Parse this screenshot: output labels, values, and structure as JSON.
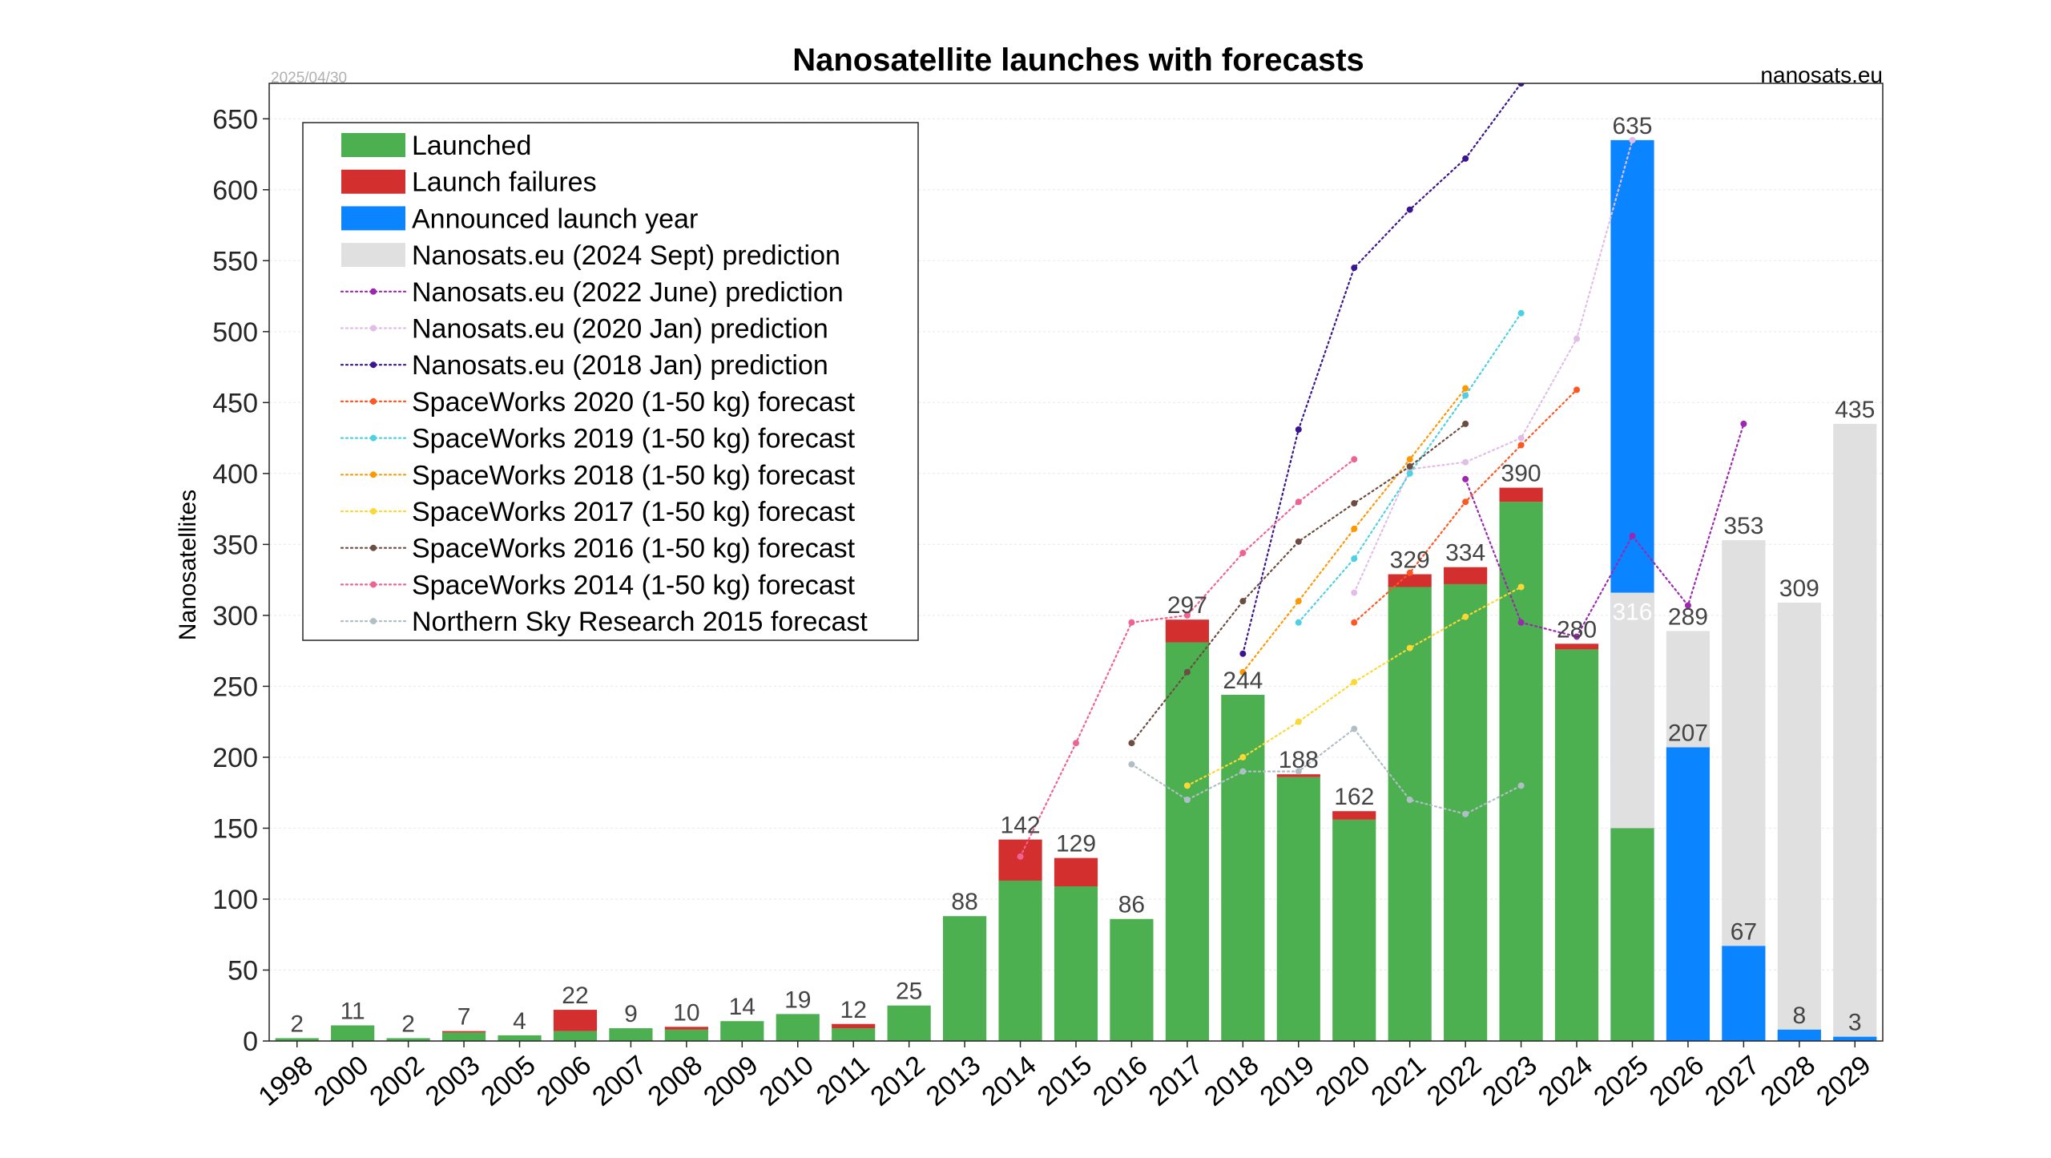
{
  "chart_data": {
    "type": "bar",
    "title": "Nanosatellite launches with forecasts",
    "date_stamp": "2025/04/30",
    "source": "nanosats.eu",
    "ylabel": "Nanosatellites",
    "xlabel": "",
    "ylim": [
      0,
      675
    ],
    "yticks": [
      0,
      50,
      100,
      150,
      200,
      250,
      300,
      350,
      400,
      450,
      500,
      550,
      600,
      650
    ],
    "grid": true,
    "legend_position": "top-left",
    "categories": [
      "1998",
      "2000",
      "2002",
      "2003",
      "2005",
      "2006",
      "2007",
      "2008",
      "2009",
      "2010",
      "2011",
      "2012",
      "2013",
      "2014",
      "2015",
      "2016",
      "2017",
      "2018",
      "2019",
      "2020",
      "2021",
      "2022",
      "2023",
      "2024",
      "2025",
      "2026",
      "2027",
      "2028",
      "2029"
    ],
    "bar_series": [
      {
        "name": "Launched",
        "color": "#4caf50",
        "values": [
          2,
          11,
          2,
          6,
          4,
          7,
          9,
          8,
          14,
          19,
          9,
          25,
          88,
          113,
          109,
          86,
          281,
          244,
          186,
          156,
          320,
          322,
          380,
          276,
          150,
          0,
          0,
          0,
          0
        ]
      },
      {
        "name": "Launch failures",
        "color": "#d32f2f",
        "values": [
          0,
          0,
          0,
          1,
          0,
          15,
          0,
          2,
          0,
          0,
          3,
          0,
          0,
          29,
          20,
          0,
          16,
          0,
          2,
          6,
          9,
          12,
          10,
          4,
          0,
          0,
          0,
          0,
          0
        ]
      },
      {
        "name": "Announced launch year",
        "color": "#0a84ff",
        "values": [
          0,
          0,
          0,
          0,
          0,
          0,
          0,
          0,
          0,
          0,
          0,
          0,
          0,
          0,
          0,
          0,
          0,
          0,
          0,
          0,
          0,
          0,
          0,
          0,
          635,
          207,
          67,
          8,
          3
        ]
      },
      {
        "name": "Nanosats.eu (2024 Sept) prediction",
        "color": "#e0e0e0",
        "values": [
          0,
          0,
          0,
          0,
          0,
          0,
          0,
          0,
          0,
          0,
          0,
          0,
          0,
          0,
          0,
          0,
          0,
          0,
          0,
          0,
          0,
          0,
          0,
          0,
          316,
          289,
          353,
          309,
          435
        ]
      }
    ],
    "bar_labels": [
      {
        "year": "1998",
        "text": "2",
        "value": 2,
        "inside": false
      },
      {
        "year": "2000",
        "text": "11",
        "value": 11,
        "inside": false
      },
      {
        "year": "2002",
        "text": "2",
        "value": 2,
        "inside": false
      },
      {
        "year": "2003",
        "text": "7",
        "value": 7,
        "inside": false
      },
      {
        "year": "2005",
        "text": "4",
        "value": 4,
        "inside": false
      },
      {
        "year": "2006",
        "text": "22",
        "value": 22,
        "inside": false
      },
      {
        "year": "2007",
        "text": "9",
        "value": 9,
        "inside": false
      },
      {
        "year": "2008",
        "text": "10",
        "value": 10,
        "inside": false
      },
      {
        "year": "2009",
        "text": "14",
        "value": 14,
        "inside": false
      },
      {
        "year": "2010",
        "text": "19",
        "value": 19,
        "inside": false
      },
      {
        "year": "2011",
        "text": "12",
        "value": 12,
        "inside": false
      },
      {
        "year": "2012",
        "text": "25",
        "value": 25,
        "inside": false
      },
      {
        "year": "2013",
        "text": "88",
        "value": 88,
        "inside": false
      },
      {
        "year": "2014",
        "text": "142",
        "value": 142,
        "inside": false
      },
      {
        "year": "2015",
        "text": "129",
        "value": 129,
        "inside": false
      },
      {
        "year": "2016",
        "text": "86",
        "value": 86,
        "inside": false
      },
      {
        "year": "2017",
        "text": "297",
        "value": 297,
        "inside": false
      },
      {
        "year": "2018",
        "text": "244",
        "value": 244,
        "inside": false
      },
      {
        "year": "2019",
        "text": "188",
        "value": 188,
        "inside": false
      },
      {
        "year": "2020",
        "text": "162",
        "value": 162,
        "inside": false
      },
      {
        "year": "2021",
        "text": "329",
        "value": 329,
        "inside": false
      },
      {
        "year": "2022",
        "text": "334",
        "value": 334,
        "inside": false
      },
      {
        "year": "2023",
        "text": "390",
        "value": 390,
        "inside": false
      },
      {
        "year": "2024",
        "text": "280",
        "value": 280,
        "inside": false
      },
      {
        "year": "2025",
        "text": "635",
        "value": 635,
        "inside": false
      },
      {
        "year": "2025",
        "text": "316",
        "value": 316,
        "inside": true
      },
      {
        "year": "2026",
        "text": "289",
        "value": 289,
        "inside": false
      },
      {
        "year": "2026",
        "text": "207",
        "value": 207,
        "inside": false
      },
      {
        "year": "2027",
        "text": "353",
        "value": 353,
        "inside": false
      },
      {
        "year": "2027",
        "text": "67",
        "value": 67,
        "inside": false
      },
      {
        "year": "2028",
        "text": "309",
        "value": 309,
        "inside": false
      },
      {
        "year": "2028",
        "text": "8",
        "value": 8,
        "inside": false
      },
      {
        "year": "2029",
        "text": "435",
        "value": 435,
        "inside": false
      },
      {
        "year": "2029",
        "text": "3",
        "value": 3,
        "inside": false
      }
    ],
    "line_series": [
      {
        "name": "Nanosats.eu (2022 June) prediction",
        "color": "#9c27b0",
        "points": [
          [
            "2022",
            396
          ],
          [
            "2023",
            295
          ],
          [
            "2024",
            285
          ],
          [
            "2025",
            356
          ],
          [
            "2026",
            307
          ],
          [
            "2027",
            435
          ]
        ]
      },
      {
        "name": "Nanosats.eu (2020 Jan) prediction",
        "color": "#e1bee7",
        "points": [
          [
            "2020",
            316
          ],
          [
            "2021",
            403
          ],
          [
            "2022",
            408
          ],
          [
            "2023",
            425
          ],
          [
            "2024",
            495
          ],
          [
            "2025",
            635
          ]
        ]
      },
      {
        "name": "Nanosats.eu (2018 Jan) prediction",
        "color": "#3a1590",
        "points": [
          [
            "2018",
            273
          ],
          [
            "2019",
            431
          ],
          [
            "2020",
            545
          ],
          [
            "2021",
            586
          ],
          [
            "2022",
            622
          ],
          [
            "2023",
            675
          ]
        ]
      },
      {
        "name": "SpaceWorks 2020 (1-50 kg) forecast",
        "color": "#ff5722",
        "points": [
          [
            "2020",
            295
          ],
          [
            "2021",
            330
          ],
          [
            "2022",
            380
          ],
          [
            "2023",
            420
          ],
          [
            "2024",
            459
          ]
        ]
      },
      {
        "name": "SpaceWorks 2019 (1-50 kg) forecast",
        "color": "#4dd0e1",
        "points": [
          [
            "2019",
            295
          ],
          [
            "2020",
            340
          ],
          [
            "2021",
            400
          ],
          [
            "2022",
            455
          ],
          [
            "2023",
            513
          ]
        ]
      },
      {
        "name": "SpaceWorks 2018 (1-50 kg) forecast",
        "color": "#ff9800",
        "points": [
          [
            "2018",
            260
          ],
          [
            "2019",
            310
          ],
          [
            "2020",
            361
          ],
          [
            "2021",
            410
          ],
          [
            "2022",
            460
          ]
        ]
      },
      {
        "name": "SpaceWorks 2017 (1-50 kg) forecast",
        "color": "#fdd835",
        "points": [
          [
            "2017",
            180
          ],
          [
            "2018",
            200
          ],
          [
            "2019",
            225
          ],
          [
            "2020",
            253
          ],
          [
            "2021",
            277
          ],
          [
            "2022",
            299
          ],
          [
            "2023",
            320
          ]
        ]
      },
      {
        "name": "SpaceWorks 2016 (1-50 kg) forecast",
        "color": "#6d4c41",
        "points": [
          [
            "2016",
            210
          ],
          [
            "2017",
            260
          ],
          [
            "2018",
            310
          ],
          [
            "2019",
            352
          ],
          [
            "2020",
            379
          ],
          [
            "2021",
            405
          ],
          [
            "2022",
            435
          ]
        ]
      },
      {
        "name": "SpaceWorks 2014 (1-50 kg) forecast",
        "color": "#f06292",
        "points": [
          [
            "2014",
            130
          ],
          [
            "2015",
            210
          ],
          [
            "2016",
            295
          ],
          [
            "2017",
            300
          ],
          [
            "2018",
            344
          ],
          [
            "2019",
            380
          ],
          [
            "2020",
            410
          ]
        ]
      },
      {
        "name": "Northern Sky Research 2015 forecast",
        "color": "#b0bec5",
        "points": [
          [
            "2016",
            195
          ],
          [
            "2017",
            170
          ],
          [
            "2018",
            190
          ],
          [
            "2019",
            190
          ],
          [
            "2020",
            220
          ],
          [
            "2021",
            170
          ],
          [
            "2022",
            160
          ],
          [
            "2023",
            180
          ]
        ]
      }
    ],
    "legend": [
      {
        "label": "Launched",
        "kind": "patch",
        "color": "#4caf50"
      },
      {
        "label": "Launch failures",
        "kind": "patch",
        "color": "#d32f2f"
      },
      {
        "label": "Announced launch year",
        "kind": "patch",
        "color": "#0a84ff"
      },
      {
        "label": "Nanosats.eu (2024 Sept) prediction",
        "kind": "patch",
        "color": "#e0e0e0"
      },
      {
        "label": "Nanosats.eu (2022 June) prediction",
        "kind": "line",
        "color": "#9c27b0"
      },
      {
        "label": "Nanosats.eu (2020 Jan) prediction",
        "kind": "line",
        "color": "#e1bee7"
      },
      {
        "label": "Nanosats.eu (2018 Jan) prediction",
        "kind": "line",
        "color": "#3a1590"
      },
      {
        "label": "SpaceWorks 2020 (1-50 kg) forecast",
        "kind": "line",
        "color": "#ff5722"
      },
      {
        "label": "SpaceWorks 2019 (1-50 kg) forecast",
        "kind": "line",
        "color": "#4dd0e1"
      },
      {
        "label": "SpaceWorks 2018 (1-50 kg) forecast",
        "kind": "line",
        "color": "#ff9800"
      },
      {
        "label": "SpaceWorks 2017 (1-50 kg) forecast",
        "kind": "line",
        "color": "#fdd835"
      },
      {
        "label": "SpaceWorks 2016 (1-50 kg) forecast",
        "kind": "line",
        "color": "#6d4c41"
      },
      {
        "label": "SpaceWorks 2014 (1-50 kg) forecast",
        "kind": "line",
        "color": "#f06292"
      },
      {
        "label": "Northern Sky Research 2015 forecast",
        "kind": "line",
        "color": "#b0bec5"
      }
    ]
  }
}
